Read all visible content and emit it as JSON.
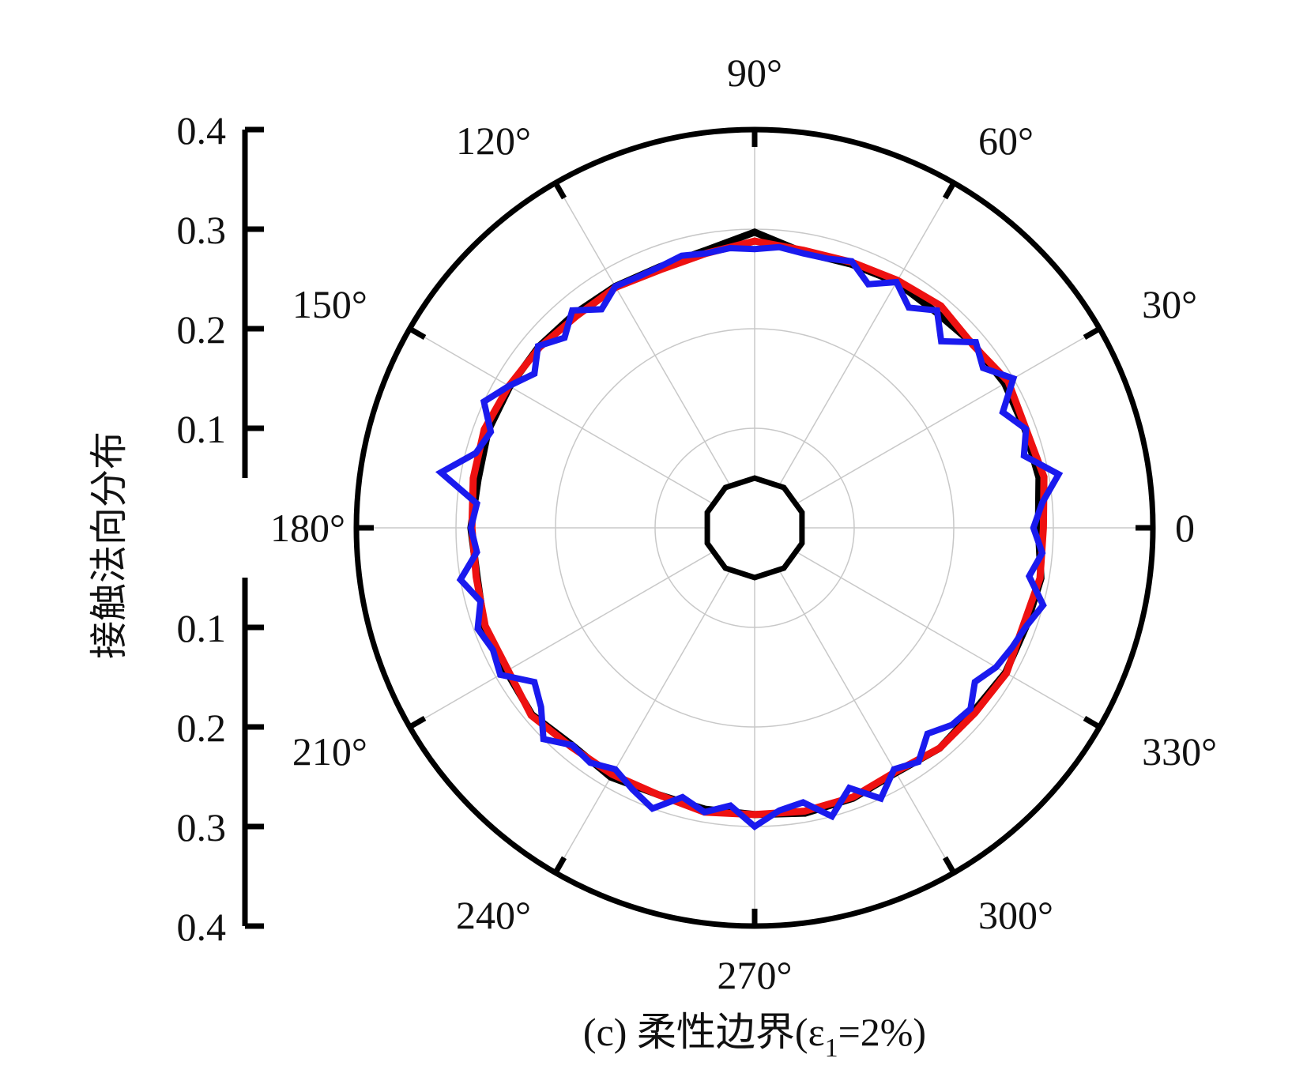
{
  "chart_data": {
    "type": "polar-line",
    "caption": {
      "prefix": "(c) 柔性边界(ε",
      "subscript": "1",
      "suffix": "=2%)"
    },
    "ylabel": "接触法向分布",
    "r_range": [
      0,
      0.4
    ],
    "r_ticks_upper": [
      "0.4",
      "0.3",
      "0.2",
      "0.1"
    ],
    "r_ticks_lower": [
      "0.1",
      "0.2",
      "0.3",
      "0.4"
    ],
    "r_tick_values": [
      0.4,
      0.3,
      0.2,
      0.1
    ],
    "angle_labels": [
      {
        "deg": 0,
        "text": "0"
      },
      {
        "deg": 30,
        "text": "30°"
      },
      {
        "deg": 60,
        "text": "60°"
      },
      {
        "deg": 90,
        "text": "90°"
      },
      {
        "deg": 120,
        "text": "120°"
      },
      {
        "deg": 150,
        "text": "150°"
      },
      {
        "deg": 180,
        "text": "180°"
      },
      {
        "deg": 210,
        "text": "210°"
      },
      {
        "deg": 240,
        "text": "240°"
      },
      {
        "deg": 270,
        "text": "270°"
      },
      {
        "deg": 300,
        "text": "300°"
      },
      {
        "deg": 330,
        "text": "330°"
      }
    ],
    "inner_ring_r": 0.05,
    "grid": true,
    "grid_rings": [
      0.1,
      0.2,
      0.3
    ],
    "colors": {
      "black": "#000000",
      "red": "#ee1111",
      "blue": "#1a1aee",
      "grid": "#c8c8c8"
    },
    "series": [
      {
        "color": "#000000",
        "theta": [
          0,
          10,
          20,
          30,
          40,
          50,
          60,
          70,
          80,
          90,
          100,
          110,
          120,
          130,
          140,
          150,
          160,
          170,
          180,
          190,
          200,
          210,
          220,
          230,
          240,
          250,
          260,
          270,
          280,
          290,
          300,
          310,
          320,
          330,
          340,
          350
        ],
        "r": [
          0.285,
          0.29,
          0.289,
          0.29,
          0.287,
          0.283,
          0.285,
          0.282,
          0.281,
          0.297,
          0.283,
          0.279,
          0.28,
          0.281,
          0.283,
          0.284,
          0.285,
          0.282,
          0.285,
          0.283,
          0.289,
          0.288,
          0.292,
          0.285,
          0.289,
          0.285,
          0.287,
          0.288,
          0.291,
          0.289,
          0.284,
          0.289,
          0.287,
          0.291,
          0.29,
          0.292
        ]
      },
      {
        "color": "#ee1111",
        "theta": [
          0,
          10,
          20,
          30,
          40,
          50,
          60,
          70,
          80,
          90,
          100,
          110,
          120,
          130,
          140,
          150,
          160,
          170,
          180,
          190,
          200,
          210,
          220,
          230,
          240,
          250,
          260,
          270,
          280,
          290,
          300,
          310,
          320,
          330,
          340,
          350
        ],
        "r": [
          0.29,
          0.295,
          0.29,
          0.294,
          0.286,
          0.291,
          0.287,
          0.284,
          0.283,
          0.288,
          0.28,
          0.276,
          0.279,
          0.278,
          0.282,
          0.285,
          0.289,
          0.287,
          0.284,
          0.284,
          0.288,
          0.286,
          0.293,
          0.287,
          0.286,
          0.285,
          0.29,
          0.288,
          0.289,
          0.288,
          0.283,
          0.289,
          0.289,
          0.292,
          0.287,
          0.291
        ]
      },
      {
        "color": "#1a1aee",
        "theta": [
          0,
          5,
          10,
          15,
          20,
          25,
          30,
          35,
          40,
          45,
          50,
          55,
          60,
          65,
          70,
          75,
          80,
          85,
          90,
          95,
          100,
          105,
          110,
          115,
          120,
          125,
          130,
          135,
          140,
          145,
          150,
          155,
          160,
          165,
          170,
          175,
          180,
          185,
          190,
          195,
          200,
          205,
          210,
          215,
          220,
          225,
          230,
          235,
          240,
          245,
          250,
          255,
          260,
          265,
          270,
          275,
          280,
          285,
          290,
          295,
          300,
          305,
          310,
          315,
          320,
          325,
          330,
          335,
          340,
          345,
          350,
          355
        ],
        "r": [
          0.28,
          0.29,
          0.31,
          0.28,
          0.29,
          0.275,
          0.3,
          0.28,
          0.29,
          0.265,
          0.285,
          0.27,
          0.285,
          0.27,
          0.285,
          0.28,
          0.28,
          0.283,
          0.28,
          0.282,
          0.28,
          0.283,
          0.279,
          0.278,
          0.28,
          0.268,
          0.285,
          0.27,
          0.284,
          0.27,
          0.285,
          0.3,
          0.282,
          0.29,
          0.32,
          0.28,
          0.285,
          0.28,
          0.3,
          0.285,
          0.296,
          0.29,
          0.295,
          0.27,
          0.28,
          0.3,
          0.285,
          0.288,
          0.28,
          0.29,
          0.3,
          0.28,
          0.29,
          0.28,
          0.3,
          0.285,
          0.28,
          0.3,
          0.278,
          0.3,
          0.28,
          0.287,
          0.27,
          0.28,
          0.283,
          0.27,
          0.28,
          0.285,
          0.29,
          0.3,
          0.28,
          0.29
        ]
      }
    ]
  }
}
